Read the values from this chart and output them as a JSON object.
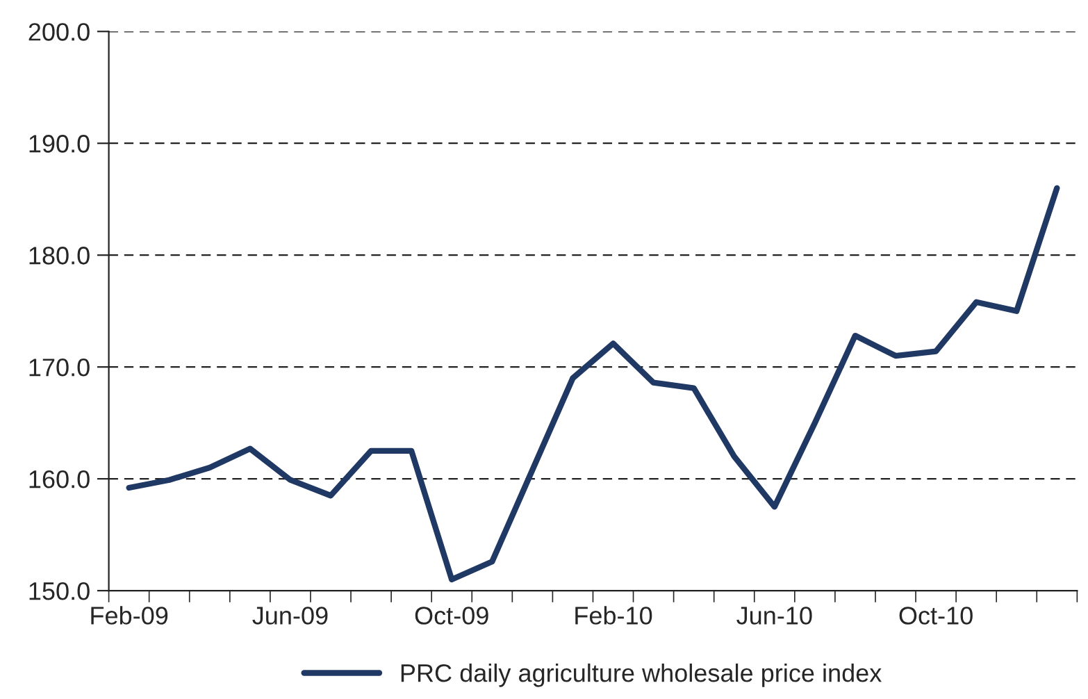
{
  "chart_data": {
    "type": "line",
    "categories": [
      "Feb-09",
      null,
      null,
      null,
      "Jun-09",
      null,
      null,
      null,
      "Oct-09",
      null,
      null,
      null,
      "Feb-10",
      null,
      null,
      null,
      "Jun-10",
      null,
      null,
      null,
      "Oct-10",
      null,
      null,
      null
    ],
    "series": [
      {
        "name": "PRC daily agriculture wholesale price index",
        "color": "#1f3864",
        "values": [
          159.2,
          159.9,
          161.0,
          162.7,
          159.9,
          158.5,
          162.5,
          162.5,
          151.0,
          152.6,
          160.8,
          169.0,
          172.1,
          168.6,
          168.1,
          162.0,
          157.5,
          165.0,
          172.8,
          171.0,
          171.4,
          175.8,
          175.0,
          186.0
        ]
      }
    ],
    "ylim": [
      150,
      200
    ],
    "yticks": [
      {
        "value": 150,
        "label": "150.0"
      },
      {
        "value": 160,
        "label": "160.0"
      },
      {
        "value": 170,
        "label": "170.0"
      },
      {
        "value": 180,
        "label": "180.0"
      },
      {
        "value": 190,
        "label": "190.0"
      },
      {
        "value": 200,
        "label": "200.0"
      }
    ],
    "grid": "y",
    "legend": "bottom",
    "marker": "none",
    "line_style": "solid"
  }
}
